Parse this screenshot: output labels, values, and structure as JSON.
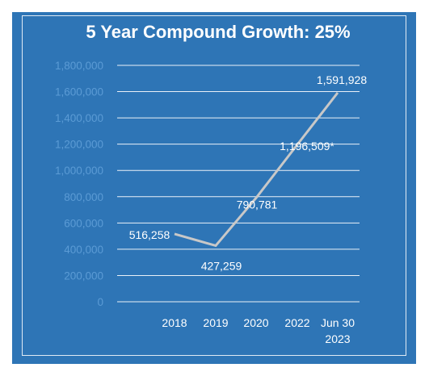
{
  "chart_data": {
    "type": "line",
    "title": "5 Year Compound Growth: 25%",
    "xlabel": "",
    "ylabel": "",
    "categories": [
      "2018",
      "2019",
      "2020",
      "2022",
      "Jun 30 2023"
    ],
    "category_lines": [
      [
        "2018"
      ],
      [
        "2019"
      ],
      [
        "2020"
      ],
      [
        "2022"
      ],
      [
        "Jun 30",
        "2023"
      ]
    ],
    "values": [
      516258,
      427259,
      790781,
      1196509,
      1591928
    ],
    "data_labels": [
      "516,258",
      "427,259",
      "790,781",
      "1,196,509*",
      "1,591,928"
    ],
    "ylim": [
      0,
      1800000
    ],
    "y_ticks": [
      0,
      200000,
      400000,
      600000,
      800000,
      1000000,
      1200000,
      1400000,
      1600000,
      1800000
    ],
    "y_tick_labels": [
      "0",
      "200,000",
      "400,000",
      "600,000",
      "800,000",
      "1,000,000",
      "1,200,000",
      "1,400,000",
      "1,600,000",
      "1,800,000"
    ],
    "grid": true,
    "legend": "none",
    "colors": {
      "background": "#2e75b6",
      "line": "#c8c8c8",
      "gridline": "#ffffff",
      "tick_text": "#5b9bd5",
      "text": "#ffffff"
    }
  }
}
